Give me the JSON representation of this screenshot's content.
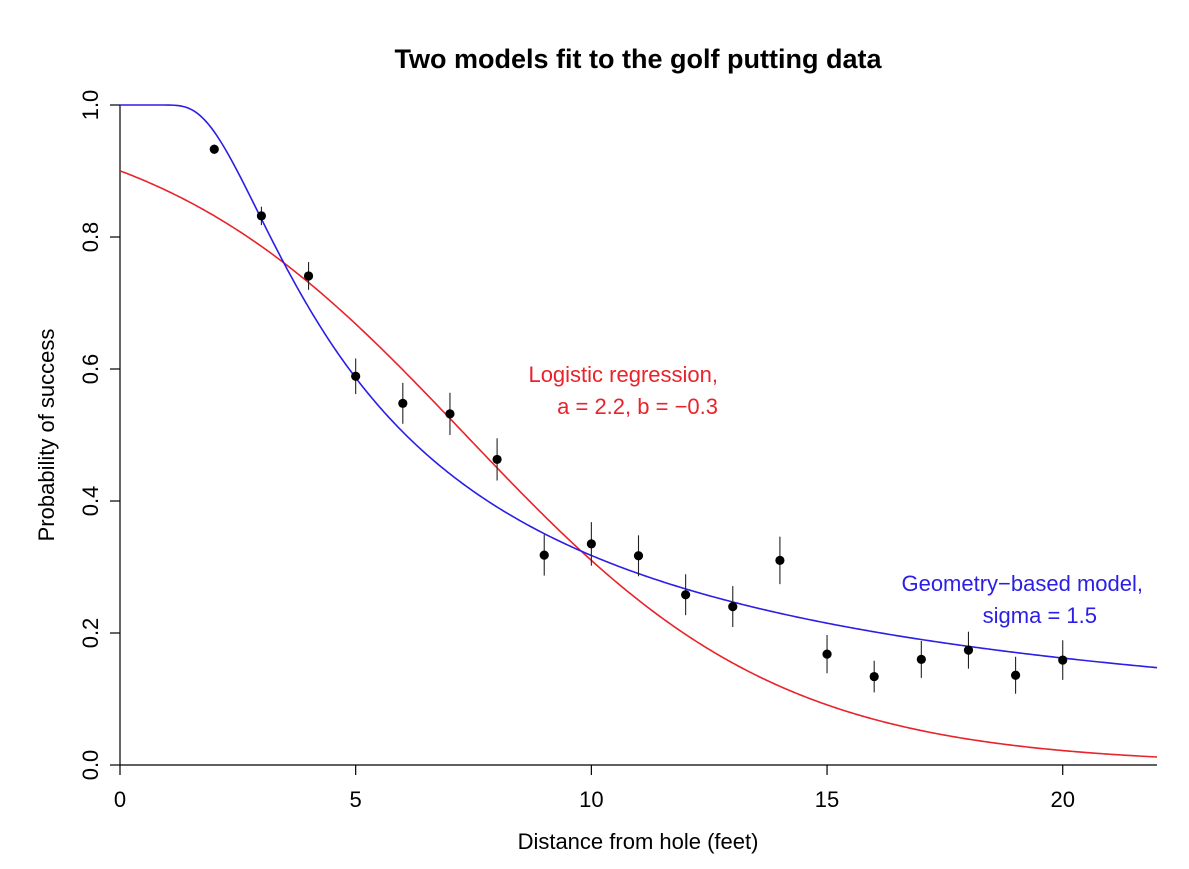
{
  "chart_data": {
    "type": "scatter",
    "title": "Two models fit to the golf putting data",
    "xlabel": "Distance from hole (feet)",
    "ylabel": "Probability of success",
    "xlim": [
      0,
      22
    ],
    "ylim": [
      0,
      1
    ],
    "x_ticks": [
      0,
      5,
      10,
      15,
      20
    ],
    "y_ticks": [
      0.0,
      0.2,
      0.4,
      0.6,
      0.8,
      1.0
    ],
    "x_tick_labels": [
      "0",
      "5",
      "10",
      "15",
      "20"
    ],
    "y_tick_labels": [
      "0.0",
      "0.2",
      "0.4",
      "0.6",
      "0.8",
      "1.0"
    ],
    "grid": false,
    "points": {
      "x": [
        2,
        3,
        4,
        5,
        6,
        7,
        8,
        9,
        10,
        11,
        12,
        13,
        14,
        15,
        16,
        17,
        18,
        19,
        20
      ],
      "y": [
        0.933,
        0.832,
        0.741,
        0.589,
        0.548,
        0.532,
        0.463,
        0.318,
        0.335,
        0.317,
        0.258,
        0.24,
        0.31,
        0.168,
        0.134,
        0.16,
        0.174,
        0.136,
        0.159
      ],
      "se": [
        0.007,
        0.014,
        0.021,
        0.027,
        0.031,
        0.032,
        0.032,
        0.031,
        0.033,
        0.031,
        0.031,
        0.031,
        0.036,
        0.029,
        0.024,
        0.028,
        0.028,
        0.028,
        0.03
      ],
      "color": "#000000"
    },
    "series": [
      {
        "model": "logistic",
        "a": 2.2,
        "b": -0.3,
        "color": "#e8232b",
        "label_line1": "Logistic regression,",
        "label_line2": "a = 2.2, b = −0.3"
      },
      {
        "model": "geometry",
        "sigma": 1.5,
        "color": "#2b1ee6",
        "label_line1": "Geometry−based model,",
        "label_line2": "sigma = 1.5"
      }
    ]
  }
}
